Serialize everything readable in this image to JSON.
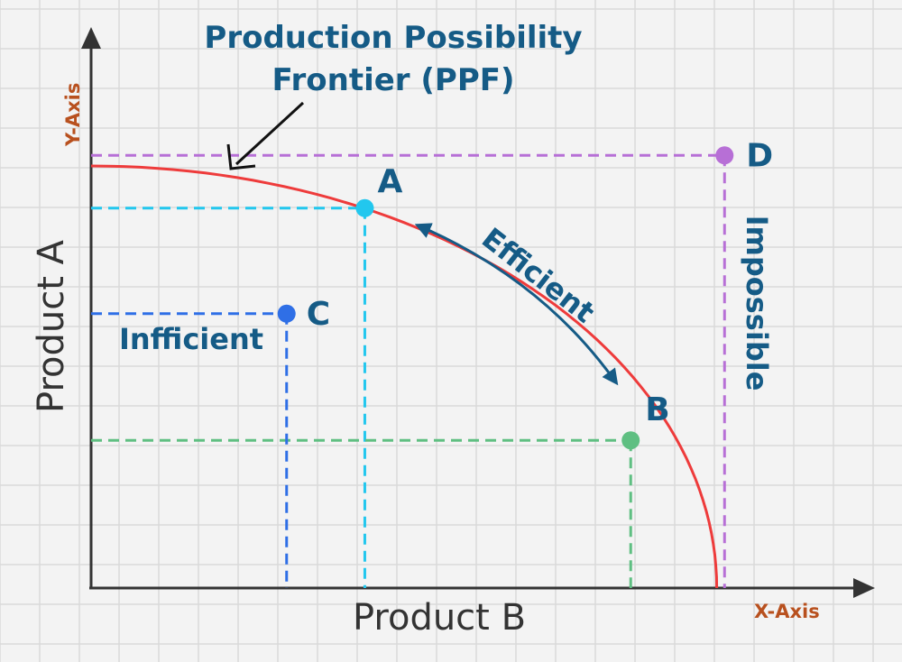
{
  "title": {
    "line1": "Production Possibility",
    "line2": "Frontier (PPF)"
  },
  "axes": {
    "y_axis_label": "Y-Axis",
    "x_axis_label": "X-Axis",
    "y_name": "Product A",
    "x_name": "Product B"
  },
  "points": [
    {
      "key": "A",
      "label": "A",
      "color": "#22c7ee"
    },
    {
      "key": "B",
      "label": "B",
      "color": "#5fbf82"
    },
    {
      "key": "C",
      "label": "C",
      "color": "#2f6fe6"
    },
    {
      "key": "D",
      "label": "D",
      "color": "#b76fd6"
    }
  ],
  "annotations": {
    "efficient": "Efficient",
    "inefficient": "Infficient",
    "impossible": "Impossible"
  },
  "colors": {
    "curve": "#ee3b3b",
    "text_dark": "#155b86",
    "axis_tag": "#b8501e",
    "axis": "#333333",
    "grid": "#d9d9d9",
    "arrow_pointer": "#111111"
  },
  "chart_data": {
    "type": "line",
    "series": [
      {
        "name": "Production Possibility Frontier (PPF)",
        "x": [
          0,
          3.5,
          6.9,
          8.0
        ],
        "y": [
          4.0,
          3.6,
          1.4,
          0
        ]
      }
    ],
    "points": [
      {
        "label": "A",
        "x": 3.5,
        "y": 3.6
      },
      {
        "label": "B",
        "x": 6.9,
        "y": 1.4
      },
      {
        "label": "C",
        "x": 2.5,
        "y": 2.6
      },
      {
        "label": "D",
        "x": 8.1,
        "y": 4.1
      }
    ],
    "xlabel": "Product B",
    "ylabel": "Product A",
    "grid": true
  }
}
